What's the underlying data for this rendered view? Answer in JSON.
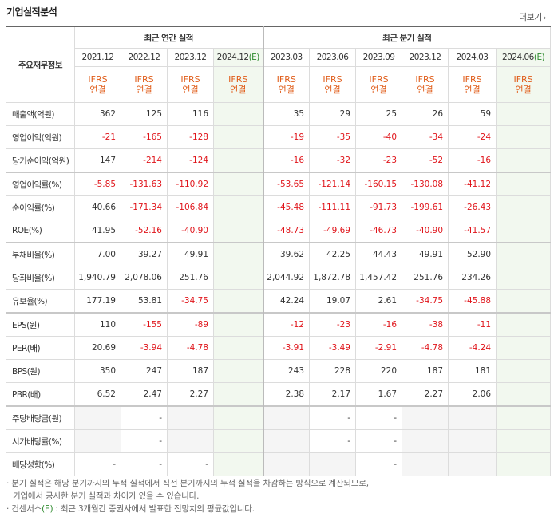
{
  "title": "기업실적분석",
  "more_label": "더보기",
  "more_icon": "chevron-right-icon",
  "row_header": "주요재무정보",
  "groups": {
    "annual": "최근 연간 실적",
    "quarterly": "최근 분기 실적"
  },
  "periods": [
    {
      "label": "2021.12",
      "est": false
    },
    {
      "label": "2022.12",
      "est": false
    },
    {
      "label": "2023.12",
      "est": false
    },
    {
      "label": "2024.12",
      "est": true
    },
    {
      "label": "2023.03",
      "est": false
    },
    {
      "label": "2023.06",
      "est": false
    },
    {
      "label": "2023.09",
      "est": false
    },
    {
      "label": "2023.12",
      "est": false
    },
    {
      "label": "2024.03",
      "est": false
    },
    {
      "label": "2024.06",
      "est": true
    }
  ],
  "est_suffix": "(E)",
  "ifrs_line1": "IFRS",
  "ifrs_line2": "연결",
  "rows": [
    {
      "label": "매출액(억원)",
      "values": [
        "362",
        "125",
        "116",
        "",
        "35",
        "29",
        "25",
        "26",
        "59",
        ""
      ]
    },
    {
      "label": "영업이익(억원)",
      "values": [
        "-21",
        "-165",
        "-128",
        "",
        "-19",
        "-35",
        "-40",
        "-34",
        "-24",
        ""
      ]
    },
    {
      "label": "당기순이익(억원)",
      "values": [
        "147",
        "-214",
        "-124",
        "",
        "-16",
        "-32",
        "-23",
        "-52",
        "-16",
        ""
      ]
    },
    {
      "label": "영업이익률(%)",
      "values": [
        "-5.85",
        "-131.63",
        "-110.92",
        "",
        "-53.65",
        "-121.14",
        "-160.15",
        "-130.08",
        "-41.12",
        ""
      ]
    },
    {
      "label": "순이익률(%)",
      "values": [
        "40.66",
        "-171.34",
        "-106.84",
        "",
        "-45.48",
        "-111.11",
        "-91.73",
        "-199.61",
        "-26.43",
        ""
      ]
    },
    {
      "label": "ROE(%)",
      "values": [
        "41.95",
        "-52.16",
        "-40.90",
        "",
        "-48.73",
        "-49.69",
        "-46.73",
        "-40.90",
        "-41.57",
        ""
      ]
    },
    {
      "label": "부채비율(%)",
      "values": [
        "7.00",
        "39.27",
        "49.91",
        "",
        "39.62",
        "42.25",
        "44.43",
        "49.91",
        "52.90",
        ""
      ]
    },
    {
      "label": "당좌비율(%)",
      "values": [
        "1,940.79",
        "2,078.06",
        "251.76",
        "",
        "2,044.92",
        "1,872.78",
        "1,457.42",
        "251.76",
        "234.26",
        ""
      ]
    },
    {
      "label": "유보율(%)",
      "values": [
        "177.19",
        "53.81",
        "-34.75",
        "",
        "42.24",
        "19.07",
        "2.61",
        "-34.75",
        "-45.88",
        ""
      ]
    },
    {
      "label": "EPS(원)",
      "values": [
        "110",
        "-155",
        "-89",
        "",
        "-12",
        "-23",
        "-16",
        "-38",
        "-11",
        ""
      ]
    },
    {
      "label": "PER(배)",
      "values": [
        "20.69",
        "-3.94",
        "-4.78",
        "",
        "-3.91",
        "-3.49",
        "-2.91",
        "-4.78",
        "-4.24",
        ""
      ]
    },
    {
      "label": "BPS(원)",
      "values": [
        "350",
        "247",
        "187",
        "",
        "243",
        "228",
        "220",
        "187",
        "181",
        ""
      ]
    },
    {
      "label": "PBR(배)",
      "values": [
        "6.52",
        "2.47",
        "2.27",
        "",
        "2.38",
        "2.17",
        "1.67",
        "2.27",
        "2.06",
        ""
      ]
    },
    {
      "label": "주당배당금(원)",
      "values": [
        "",
        "-",
        "",
        "",
        "",
        "-",
        "-",
        "",
        "",
        ""
      ]
    },
    {
      "label": "시가배당률(%)",
      "values": [
        "",
        "-",
        "",
        "",
        "",
        "-",
        "-",
        "",
        "",
        ""
      ]
    },
    {
      "label": "배당성향(%)",
      "values": [
        "-",
        "-",
        "-",
        "",
        "",
        "",
        "-",
        "",
        "",
        ""
      ]
    }
  ],
  "notes": [
    "· 분기 실적은 해당 분기까지의 누적 실적에서 직전 분기까지의 누적 실적을 차감하는 방식으로 계산되므로,",
    "  기업에서 공시한 분기 실적과 차이가 있을 수 있습니다.",
    "· 컨센서스",
    "(E)",
    " : 최근 3개월간 증권사에서 발표한 전망치의 평균값입니다."
  ]
}
